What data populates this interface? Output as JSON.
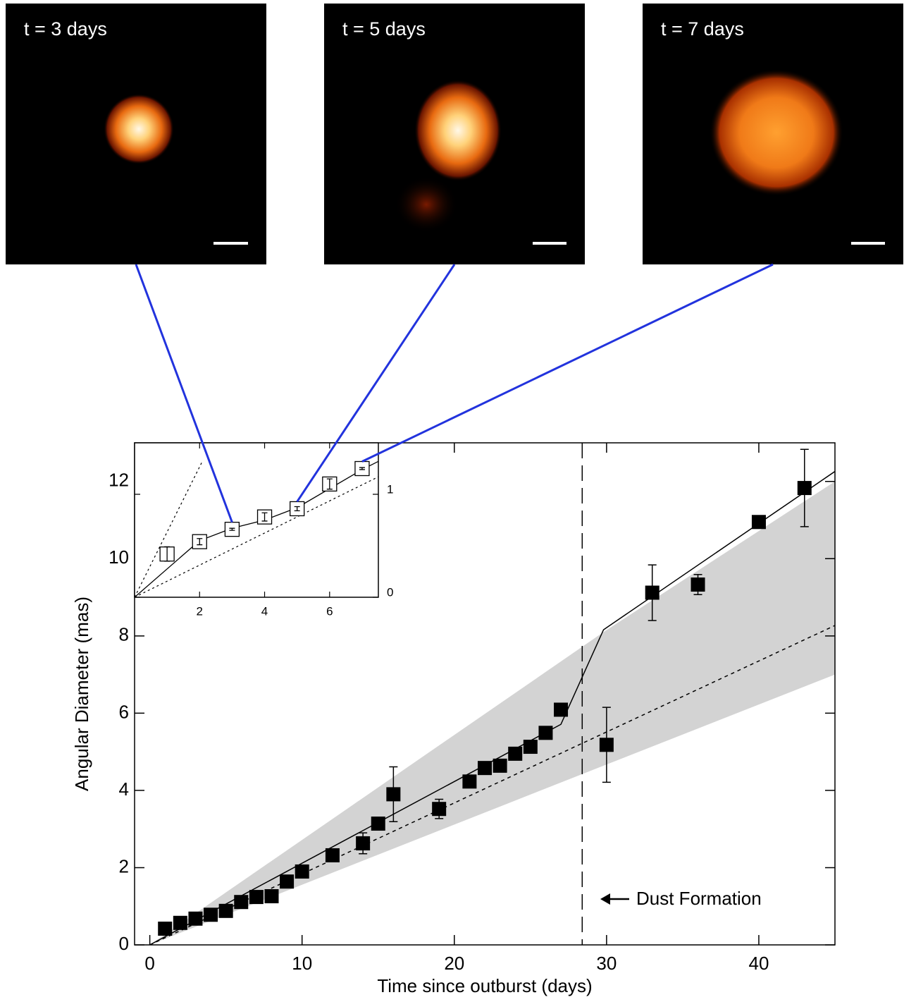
{
  "panels": [
    {
      "label": "t = 3 days"
    },
    {
      "label": "t = 5 days"
    },
    {
      "label": "t = 7 days"
    }
  ],
  "chart_data": [
    {
      "type": "scatter",
      "xlabel": "Time since outburst (days)",
      "ylabel": "Angular Diameter (mas)",
      "x": [
        1,
        2,
        3,
        4,
        5,
        6,
        7,
        8,
        9,
        10,
        12,
        14,
        15,
        16,
        19,
        21,
        22,
        23,
        24,
        25,
        26,
        27,
        30,
        33,
        36,
        40,
        43
      ],
      "values": [
        0.42,
        0.57,
        0.68,
        0.78,
        0.88,
        1.11,
        1.24,
        1.26,
        1.64,
        1.9,
        2.32,
        2.63,
        3.14,
        3.9,
        3.52,
        4.23,
        4.58,
        4.64,
        4.95,
        5.13,
        5.49,
        6.09,
        5.18,
        9.12,
        9.33,
        10.95,
        11.83
      ],
      "errors": [
        null,
        null,
        null,
        null,
        null,
        null,
        null,
        null,
        null,
        null,
        null,
        0.27,
        null,
        0.71,
        0.25,
        0.1,
        null,
        null,
        null,
        null,
        null,
        null,
        0.97,
        0.72,
        0.26,
        null,
        1.0
      ],
      "color": "#000000",
      "model_line": {
        "x": [
          0,
          27,
          29.8,
          45
        ],
        "values": [
          0,
          5.71,
          8.16,
          12.26
        ]
      },
      "linear_fit": {
        "x": [
          0,
          45
        ],
        "values": [
          0,
          8.27
        ]
      },
      "band": {
        "x": [
          0,
          29.8,
          45
        ],
        "upper": [
          0,
          8.1,
          12.0
        ],
        "lower": [
          0,
          4.64,
          7.0
        ],
        "color": "#d3d3d3"
      },
      "dust_formation_x": 28.4,
      "annotation": "Dust Formation",
      "xlim": [
        -1,
        45
      ],
      "ylim": [
        0,
        13
      ],
      "xticks": [
        0,
        10,
        20,
        30,
        40
      ],
      "yticks": [
        0,
        2,
        4,
        6,
        8,
        10,
        12
      ]
    },
    {
      "type": "scatter",
      "x": [
        1,
        2,
        3,
        4,
        5,
        6,
        7
      ],
      "values": [
        0.42,
        0.54,
        0.66,
        0.78,
        0.86,
        1.1,
        1.25
      ],
      "errors": [
        0.07,
        0.03,
        0.01,
        0.04,
        0.02,
        0.05,
        0.01
      ],
      "model_line": {
        "x": [
          0,
          2,
          3,
          4,
          5,
          7,
          7.5
        ],
        "values": [
          0,
          0.55,
          0.67,
          0.75,
          0.87,
          1.24,
          1.32
        ]
      },
      "linear_fits": [
        {
          "x": [
            0,
            2.1
          ],
          "values": [
            0,
            1.33
          ]
        },
        {
          "x": [
            0,
            7.5
          ],
          "values": [
            0,
            1.17
          ]
        }
      ],
      "xlim": [
        0,
        7.5
      ],
      "ylim": [
        0,
        1.5
      ],
      "xticks": [
        2,
        4,
        6
      ],
      "yticks": [
        0,
        1
      ]
    }
  ]
}
